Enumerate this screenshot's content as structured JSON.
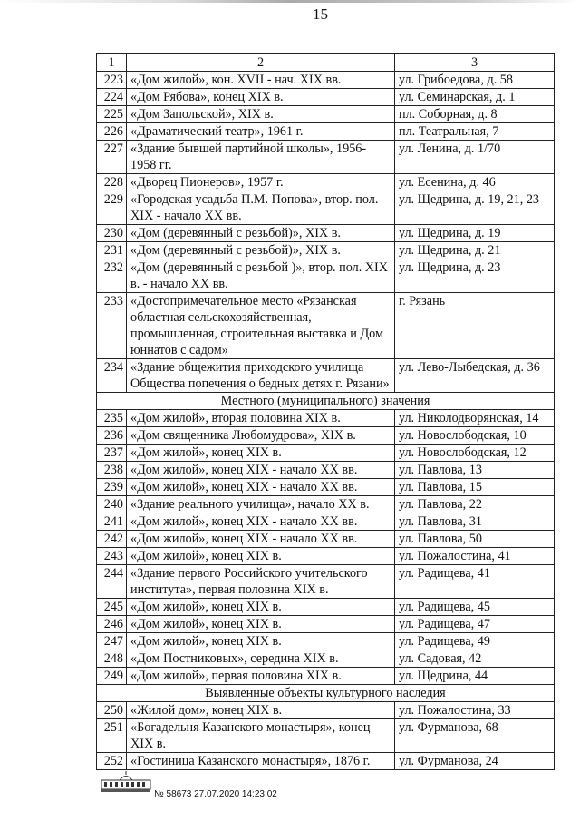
{
  "page_number": "15",
  "header": [
    "1",
    "2",
    "3"
  ],
  "rows_a": [
    {
      "n": "223",
      "desc": "«Дом жилой», кон. XVII - нач. XIX вв.",
      "addr": "ул. Грибоедова, д. 58"
    },
    {
      "n": "224",
      "desc": "«Дом Рябова», конец XIX в.",
      "addr": "ул. Семинарская, д. 1"
    },
    {
      "n": "225",
      "desc": "«Дом Запольской», XIX в.",
      "addr": "пл. Соборная, д. 8"
    },
    {
      "n": "226",
      "desc": "«Драматический театр», 1961 г.",
      "addr": "пл. Театральная, 7"
    },
    {
      "n": "227",
      "desc": "«Здание бывшей партийной школы», 1956-1958 гг.",
      "addr": "ул. Ленина, д. 1/70"
    },
    {
      "n": "228",
      "desc": "«Дворец Пионеров», 1957 г.",
      "addr": "ул. Есенина, д. 46"
    },
    {
      "n": "229",
      "desc": "«Городская усадьба П.М. Попова», втор. пол. XIX - начало XX вв.",
      "addr": "ул. Щедрина, д. 19, 21, 23"
    },
    {
      "n": "230",
      "desc": "«Дом (деревянный с резьбой)», XIX в.",
      "addr": "ул. Щедрина, д. 19"
    },
    {
      "n": "231",
      "desc": "«Дом (деревянный с резьбой)», XIX в.",
      "addr": "ул. Щедрина, д. 21"
    },
    {
      "n": "232",
      "desc": "«Дом (деревянный с резьбой )», втор. пол. XIX в. - начало XX вв.",
      "addr": "ул. Щедрина, д. 23"
    },
    {
      "n": "233",
      "desc": "«Достопримечательное место «Рязанская областная сельскохозяйственная, промышленная, строительная выставка и Дом юннатов с садом»",
      "addr": "г. Рязань"
    },
    {
      "n": "234",
      "desc": "«Здание общежития приходского училища Общества попечения о бедных детях г. Рязани»",
      "addr": "ул. Лево-Лыбедская, д. 36"
    }
  ],
  "section_b": "Местного (муниципального) значения",
  "rows_b": [
    {
      "n": "235",
      "desc": "«Дом жилой», вторая половина XIX в.",
      "addr": "ул. Николодворянская, 14"
    },
    {
      "n": "236",
      "desc": "«Дом священника Любомудрова», XIX в.",
      "addr": "ул. Новослободская, 10"
    },
    {
      "n": "237",
      "desc": "«Дом жилой», конец XIX в.",
      "addr": "ул. Новослободская, 12"
    },
    {
      "n": "238",
      "desc": "«Дом жилой», конец XIX - начало XX вв.",
      "addr": "ул. Павлова, 13"
    },
    {
      "n": "239",
      "desc": "«Дом жилой», конец XIX - начало XX вв.",
      "addr": "ул. Павлова, 15"
    },
    {
      "n": "240",
      "desc": "«Здание реального училища», начало XX в.",
      "addr": "ул. Павлова, 22"
    },
    {
      "n": "241",
      "desc": "«Дом жилой», конец XIX - начало XX вв.",
      "addr": "ул. Павлова, 31"
    },
    {
      "n": "242",
      "desc": "«Дом жилой», конец XIX - начало XX вв.",
      "addr": "ул. Павлова, 50"
    },
    {
      "n": "243",
      "desc": "«Дом жилой», конец XIX в.",
      "addr": "ул. Пожалостина, 41"
    },
    {
      "n": "244",
      "desc": "«Здание первого Российского учительского института», первая половина XIX в.",
      "addr": "ул. Радищева, 41"
    },
    {
      "n": "245",
      "desc": "«Дом жилой», конец XIX в.",
      "addr": "ул. Радищева, 45"
    },
    {
      "n": "246",
      "desc": "«Дом жилой», конец XIX в.",
      "addr": "ул. Радищева, 47"
    },
    {
      "n": "247",
      "desc": "«Дом жилой», конец XIX в.",
      "addr": "ул. Радищева, 49"
    },
    {
      "n": "248",
      "desc": "«Дом Постниковых», середина XIX в.",
      "addr": "ул. Садовая, 42"
    },
    {
      "n": "249",
      "desc": "«Дом жилой», первая половина XIX в.",
      "addr": "ул. Щедрина, 44"
    }
  ],
  "section_c": "Выявленные объекты культурного наследия",
  "rows_c": [
    {
      "n": "250",
      "desc": "«Жилой дом», конец XIX в.",
      "addr": "ул. Пожалостина, 33"
    },
    {
      "n": "251",
      "desc": "«Богадельня Казанского монастыря», конец XIX в.",
      "addr": "ул. Фурманова, 68"
    },
    {
      "n": "252",
      "desc": "«Гостиница Казанского монастыря», 1876 г.",
      "addr": "ул. Фурманова, 24"
    }
  ],
  "footer": {
    "stamp": "№ 58673  27.07.2020 14:23:02"
  }
}
